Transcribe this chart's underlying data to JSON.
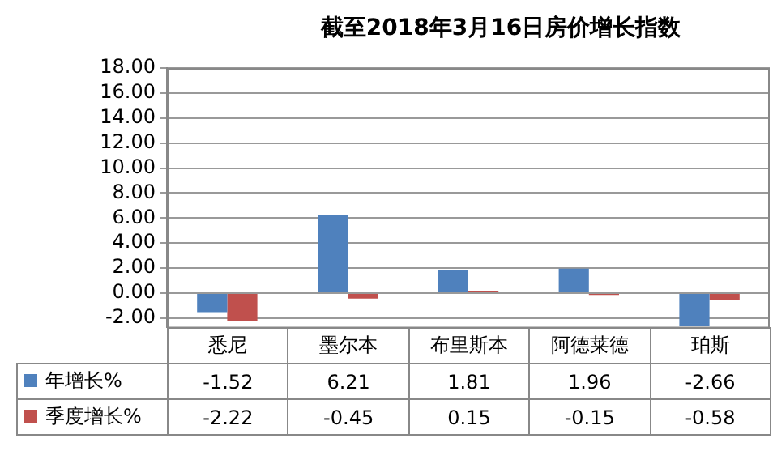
{
  "chart_data": {
    "type": "bar",
    "title": "截至2018年3月16日房价增长指数",
    "categories": [
      "悉尼",
      "墨尔本",
      "布里斯本",
      "阿德莱德",
      "珀斯"
    ],
    "series": [
      {
        "name": "年增长%",
        "color": "#4f81bd",
        "values": [
          -1.52,
          6.21,
          1.81,
          1.96,
          -2.66
        ]
      },
      {
        "name": "季度增长%",
        "color": "#c0504d",
        "values": [
          -2.22,
          -0.45,
          0.15,
          -0.15,
          -0.58
        ]
      }
    ],
    "ylim": [
      -2.7,
      18
    ],
    "yticks": [
      {
        "value": -2,
        "label": "-2.00"
      },
      {
        "value": 0,
        "label": "0.00"
      },
      {
        "value": 2,
        "label": "2.00"
      },
      {
        "value": 4,
        "label": "4.00"
      },
      {
        "value": 6,
        "label": "6.00"
      },
      {
        "value": 8,
        "label": "8.00"
      },
      {
        "value": 10,
        "label": "10.00"
      },
      {
        "value": 12,
        "label": "12.00"
      },
      {
        "value": 14,
        "label": "14.00"
      },
      {
        "value": 16,
        "label": "16.00"
      },
      {
        "value": 18,
        "label": "18.00"
      }
    ],
    "grid": "y",
    "legend": "bottom",
    "data_labels": true
  }
}
